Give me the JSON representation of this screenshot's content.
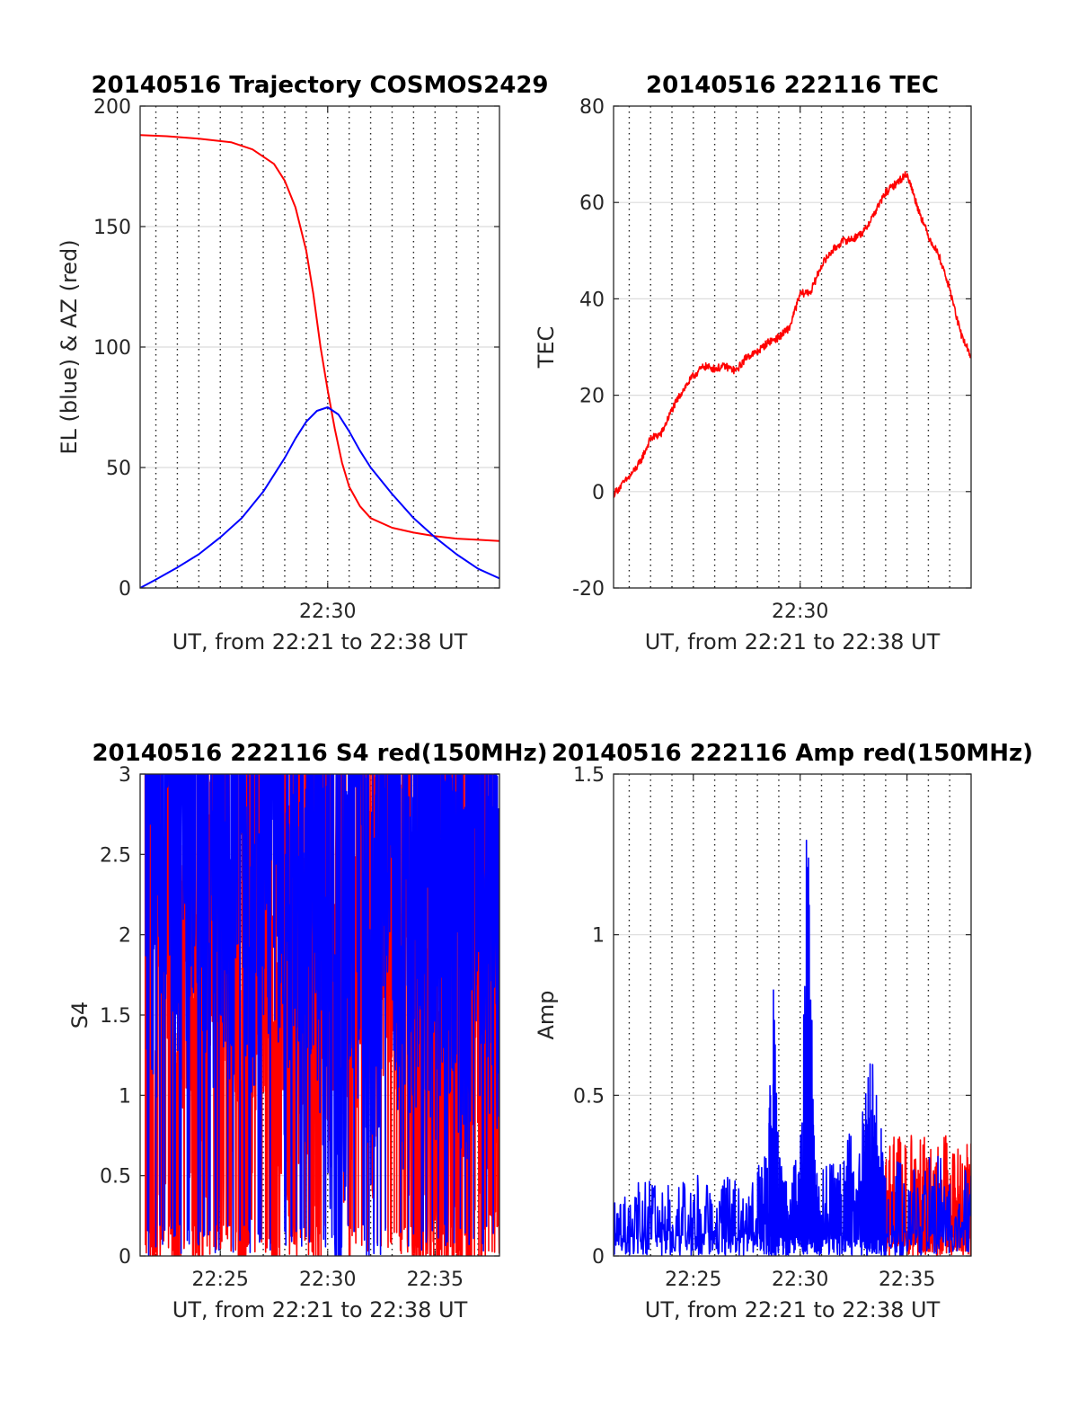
{
  "chart_data": [
    {
      "id": "traj",
      "type": "line",
      "title": "20140516 Trajectory COSMOS2429",
      "xlabel": "UT, from 22:21 to 22:38 UT",
      "ylabel": "EL (blue) & AZ (red)",
      "xlim": [
        "22:21:16",
        "22:38:00"
      ],
      "ylim": [
        0,
        200
      ],
      "yticks": [
        "0",
        "50",
        "100",
        "150",
        "200"
      ],
      "xticks": [
        {
          "t": "22:30:00",
          "label": "22:30"
        }
      ],
      "grid": "on",
      "series": [
        {
          "color": "#ff0000",
          "x": [
            "22:21:16",
            "22:22:30",
            "22:24:00",
            "22:25:30",
            "22:26:30",
            "22:27:30",
            "22:28:00",
            "22:28:30",
            "22:29:00",
            "22:29:20",
            "22:29:40",
            "22:30:00",
            "22:30:20",
            "22:30:40",
            "22:31:00",
            "22:31:30",
            "22:32:00",
            "22:33:00",
            "22:34:00",
            "22:35:00",
            "22:36:00",
            "22:37:00",
            "22:38:00"
          ],
          "y": [
            188,
            187.5,
            186.5,
            185,
            182,
            176,
            169,
            158,
            140,
            122,
            100,
            82,
            66,
            52,
            42,
            34,
            29,
            25,
            23,
            21.5,
            20.5,
            20,
            19.5
          ]
        },
        {
          "color": "#0000ff",
          "x": [
            "22:21:16",
            "22:22:00",
            "22:23:00",
            "22:24:00",
            "22:25:00",
            "22:26:00",
            "22:27:00",
            "22:28:00",
            "22:28:30",
            "22:29:00",
            "22:29:30",
            "22:30:00",
            "22:30:30",
            "22:31:00",
            "22:31:30",
            "22:32:00",
            "22:33:00",
            "22:34:00",
            "22:35:00",
            "22:36:00",
            "22:37:00",
            "22:38:00"
          ],
          "y": [
            0,
            3.5,
            8.5,
            14,
            21,
            29,
            40,
            54,
            62,
            69,
            73.5,
            75,
            72,
            65,
            57,
            50,
            39,
            29,
            21,
            14,
            8,
            4
          ]
        }
      ]
    },
    {
      "id": "tec",
      "type": "line",
      "title": "20140516 222116 TEC",
      "xlabel": "UT, from 22:21 to 22:38 UT",
      "ylabel": "TEC",
      "xlim": [
        "22:21:16",
        "22:38:00"
      ],
      "ylim": [
        -20,
        80
      ],
      "yticks": [
        "-20",
        "0",
        "20",
        "40",
        "60",
        "80"
      ],
      "xticks": [
        {
          "t": "22:30:00",
          "label": "22:30"
        }
      ],
      "grid": "on",
      "series": [
        {
          "color": "#ff0000",
          "x": [
            "22:21:16",
            "22:22:00",
            "22:22:30",
            "22:23:00",
            "22:23:30",
            "22:24:00",
            "22:24:30",
            "22:25:00",
            "22:25:30",
            "22:26:00",
            "22:26:30",
            "22:27:00",
            "22:27:30",
            "22:28:00",
            "22:28:30",
            "22:29:00",
            "22:29:30",
            "22:30:00",
            "22:30:30",
            "22:31:00",
            "22:31:30",
            "22:32:00",
            "22:32:30",
            "22:33:00",
            "22:33:30",
            "22:34:00",
            "22:34:30",
            "22:35:00",
            "22:35:30",
            "22:36:00",
            "22:36:30",
            "22:37:00",
            "22:37:30",
            "22:38:00"
          ],
          "y": [
            -0.5,
            3,
            6,
            11,
            12,
            17,
            21,
            24,
            26,
            25.5,
            26,
            25,
            28,
            29,
            31,
            32,
            34,
            41,
            41.5,
            47,
            50,
            52,
            52.5,
            54,
            58,
            62,
            64,
            66,
            59,
            53,
            49,
            42,
            33,
            28
          ]
        }
      ]
    },
    {
      "id": "s4",
      "type": "line",
      "title": "20140516 222116 S4 red(150MHz)",
      "xlabel": "UT, from 22:21 to 22:38 UT",
      "ylabel": "S4",
      "xlim": [
        "22:21:16",
        "22:38:00"
      ],
      "ylim": [
        0,
        3
      ],
      "yticks": [
        "0",
        "0.5",
        "1",
        "1.5",
        "2",
        "2.5",
        "3"
      ],
      "xticks": [
        {
          "t": "22:25:00",
          "label": "22:25"
        },
        {
          "t": "22:30:00",
          "label": "22:30"
        },
        {
          "t": "22:35:00",
          "label": "22:35"
        }
      ],
      "grid": "on",
      "series": [
        {
          "color": "#ff0000",
          "x": [
            "22:21:30",
            "22:22:00",
            "22:22:30",
            "22:23:00",
            "22:23:30",
            "22:24:00",
            "22:24:30",
            "22:25:00",
            "22:25:30",
            "22:26:00",
            "22:26:30",
            "22:27:00",
            "22:27:30",
            "22:28:00",
            "22:28:30",
            "22:29:00",
            "22:29:30",
            "22:30:00",
            "22:30:30",
            "22:31:00",
            "22:31:30",
            "22:32:00",
            "22:32:30",
            "22:33:00",
            "22:33:30",
            "22:34:00",
            "22:34:30",
            "22:35:00",
            "22:35:30",
            "22:36:00",
            "22:36:30",
            "22:37:00",
            "22:37:30",
            "22:38:00"
          ],
          "y": [
            2.1,
            0.2,
            2.0,
            0.3,
            2.2,
            0.1,
            2.0,
            1.4,
            2.1,
            0.4,
            1.9,
            2.2,
            0.5,
            2.3,
            0.9,
            2.2,
            0.6,
            2.0,
            2.5,
            1.2,
            2.8,
            1.5,
            2.6,
            2.3,
            1.6,
            1.2,
            0.8,
            1.0,
            0.6,
            1.1,
            0.7,
            1.3,
            1.2,
            1.5
          ]
        },
        {
          "color": "#0000ff",
          "x": [
            "22:21:30",
            "22:22:00",
            "22:22:30",
            "22:23:00",
            "22:23:30",
            "22:24:00",
            "22:24:30",
            "22:25:00",
            "22:25:30",
            "22:26:00",
            "22:26:30",
            "22:27:00",
            "22:27:30",
            "22:28:00",
            "22:28:30",
            "22:29:00",
            "22:29:30",
            "22:30:00",
            "22:30:30",
            "22:31:00",
            "22:31:30",
            "22:32:00",
            "22:32:30",
            "22:33:00",
            "22:33:30",
            "22:34:00",
            "22:34:30",
            "22:35:00",
            "22:35:30",
            "22:36:00",
            "22:36:30",
            "22:37:00",
            "22:37:30",
            "22:38:00"
          ],
          "y": [
            2.6,
            2.2,
            2.8,
            2.4,
            2.5,
            2.9,
            2.1,
            2.6,
            2.3,
            2.7,
            2.2,
            2.4,
            2.8,
            2.0,
            2.5,
            1.9,
            2.2,
            1.8,
            0.4,
            2.1,
            2.3,
            1.6,
            2.0,
            2.6,
            1.8,
            2.2,
            2.0,
            1.9,
            2.4,
            2.1,
            1.8,
            2.3,
            2.2,
            2.0
          ]
        }
      ]
    },
    {
      "id": "amp",
      "type": "line",
      "title": "20140516 222116 Amp red(150MHz)",
      "xlabel": "UT, from 22:21 to 22:38 UT",
      "ylabel": "Amp",
      "xlim": [
        "22:21:16",
        "22:38:00"
      ],
      "ylim": [
        0,
        1.5
      ],
      "yticks": [
        "0",
        "0.5",
        "1",
        "1.5"
      ],
      "xticks": [
        {
          "t": "22:25:00",
          "label": "22:25"
        },
        {
          "t": "22:30:00",
          "label": "22:30"
        },
        {
          "t": "22:35:00",
          "label": "22:35"
        }
      ],
      "grid": "on",
      "series": [
        {
          "color": "#ff0000",
          "x": [
            "22:34:00",
            "22:34:30",
            "22:35:00",
            "22:35:30",
            "22:36:00",
            "22:36:30",
            "22:37:00",
            "22:37:30",
            "22:38:00"
          ],
          "y": [
            0.3,
            0.35,
            0.33,
            0.38,
            0.32,
            0.36,
            0.34,
            0.3,
            0.35
          ]
        },
        {
          "color": "#0000ff",
          "x": [
            "22:21:16",
            "22:22:00",
            "22:23:00",
            "22:24:00",
            "22:25:00",
            "22:26:00",
            "22:27:00",
            "22:28:00",
            "22:28:30",
            "22:28:45",
            "22:29:00",
            "22:29:30",
            "22:30:00",
            "22:30:20",
            "22:30:40",
            "22:31:00",
            "22:32:00",
            "22:33:00",
            "22:33:20",
            "22:33:40",
            "22:34:00",
            "22:35:00",
            "22:36:00",
            "22:37:00",
            "22:38:00"
          ],
          "y": [
            0.15,
            0.2,
            0.22,
            0.2,
            0.25,
            0.22,
            0.24,
            0.25,
            0.3,
            0.84,
            0.28,
            0.25,
            0.3,
            1.37,
            0.3,
            0.25,
            0.3,
            0.45,
            0.58,
            0.4,
            0.3,
            0.28,
            0.3,
            0.27,
            0.25
          ]
        }
      ]
    }
  ]
}
